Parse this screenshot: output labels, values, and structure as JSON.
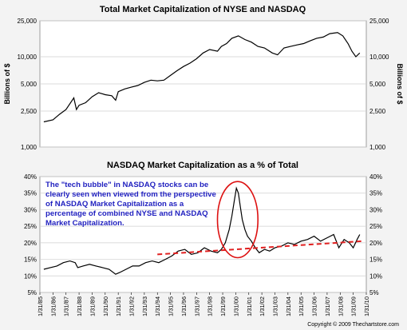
{
  "chart_data": [
    {
      "type": "line",
      "title": "Total Market Capitalization of NYSE and NASDAQ",
      "ylabel_left": "Billions of $",
      "ylabel_right": "Billions of $",
      "yscale": "log",
      "ylim": [
        1000,
        25000
      ],
      "yticks": [
        1000,
        2500,
        5000,
        10000,
        25000
      ],
      "ytick_labels": [
        "1,000",
        "2,500",
        "5,000",
        "10,000",
        "25,000"
      ],
      "xlim": [
        1985.0,
        2010.0
      ],
      "grid": true,
      "series": [
        {
          "line_color": "#000000",
          "x": [
            1985.3,
            1986.0,
            1986.5,
            1987.0,
            1987.6,
            1987.8,
            1988.0,
            1988.5,
            1989.0,
            1989.5,
            1990.0,
            1990.5,
            1990.8,
            1991.0,
            1991.5,
            1992.0,
            1992.5,
            1993.0,
            1993.5,
            1994.0,
            1994.5,
            1995.0,
            1995.5,
            1996.0,
            1996.5,
            1997.0,
            1997.5,
            1998.0,
            1998.6,
            1998.9,
            1999.3,
            1999.7,
            2000.2,
            2000.7,
            2001.2,
            2001.7,
            2002.2,
            2002.8,
            2003.2,
            2003.7,
            2004.2,
            2004.7,
            2005.2,
            2005.7,
            2006.2,
            2006.7,
            2007.2,
            2007.8,
            2008.2,
            2008.6,
            2008.9,
            2009.2,
            2009.5
          ],
          "y": [
            1900,
            2000,
            2300,
            2600,
            3500,
            2600,
            2900,
            3100,
            3600,
            4000,
            3800,
            3700,
            3300,
            4100,
            4400,
            4600,
            4800,
            5200,
            5500,
            5400,
            5500,
            6200,
            7000,
            7800,
            8500,
            9500,
            11000,
            12000,
            11500,
            13000,
            14000,
            16000,
            17000,
            15500,
            14500,
            13000,
            12500,
            11000,
            10500,
            12500,
            13000,
            13500,
            14000,
            15000,
            16000,
            16500,
            18000,
            18500,
            17000,
            14000,
            11500,
            10000,
            11000
          ]
        }
      ]
    },
    {
      "type": "line",
      "title": "NASDAQ Market Capitalization as a % of Total",
      "ylim": [
        5,
        40
      ],
      "yticks": [
        5,
        10,
        15,
        20,
        25,
        30,
        35,
        40
      ],
      "ytick_labels": [
        "5%",
        "10%",
        "15%",
        "20%",
        "25%",
        "30%",
        "35%",
        "40%"
      ],
      "xlim": [
        1985.0,
        2010.0
      ],
      "x_tick_labels": [
        "1/31/85",
        "1/31/86",
        "1/31/87",
        "1/31/88",
        "1/31/89",
        "1/31/90",
        "1/31/91",
        "1/31/92",
        "1/31/93",
        "1/31/94",
        "1/31/95",
        "1/31/96",
        "1/31/97",
        "1/31/98",
        "1/31/99",
        "1/31/00",
        "1/31/01",
        "1/31/02",
        "1/31/03",
        "1/31/04",
        "1/31/05",
        "1/31/06",
        "1/31/07",
        "1/31/08",
        "1/31/09",
        "1/31/10"
      ],
      "grid": true,
      "series": [
        {
          "line_color": "#000000",
          "x": [
            1985.3,
            1985.8,
            1986.3,
            1986.8,
            1987.3,
            1987.7,
            1987.9,
            1988.3,
            1988.8,
            1989.3,
            1989.8,
            1990.3,
            1990.8,
            1991.1,
            1991.6,
            1992.1,
            1992.6,
            1993.1,
            1993.6,
            1994.1,
            1994.6,
            1995.1,
            1995.6,
            1996.1,
            1996.6,
            1997.1,
            1997.6,
            1998.1,
            1998.6,
            1998.9,
            1999.2,
            1999.5,
            1999.7,
            1999.9,
            2000.05,
            2000.2,
            2000.35,
            2000.5,
            2000.7,
            2000.9,
            2001.2,
            2001.5,
            2001.8,
            2002.2,
            2002.6,
            2003.0,
            2003.5,
            2004.0,
            2004.5,
            2005.0,
            2005.5,
            2006.0,
            2006.5,
            2007.0,
            2007.5,
            2007.9,
            2008.3,
            2008.7,
            2009.0,
            2009.3,
            2009.5
          ],
          "y": [
            12,
            12.5,
            13,
            14,
            14.5,
            14,
            12.5,
            13,
            13.5,
            13,
            12.5,
            12,
            10.5,
            11,
            12,
            13,
            13,
            14,
            14.5,
            14,
            15,
            16,
            17.5,
            18,
            16.5,
            17,
            18.5,
            17.5,
            17,
            18,
            20,
            24,
            28,
            33,
            36.5,
            35,
            31,
            27,
            24,
            22,
            20.5,
            18.5,
            17,
            18,
            17.5,
            18.5,
            19,
            20,
            19.5,
            20.5,
            21,
            22,
            20.5,
            21.5,
            22.5,
            18.5,
            21,
            20,
            18.5,
            21,
            22.5
          ]
        },
        {
          "name": "trend",
          "line_color": "#e02020",
          "dashed": true,
          "x": [
            1994.0,
            2009.7
          ],
          "y": [
            16.5,
            20.5
          ]
        }
      ],
      "annotations": [
        "The \"tech bubble\" in NASDAQ stocks can be",
        "clearly seen when viewed from the perspective",
        "of NASDAQ Market Capitalization as a",
        "percentage of combined NYSE and NASDAQ",
        "Market Capitalization."
      ],
      "highlight": {
        "shape": "ellipse",
        "color": "#d11",
        "x_range": [
          1998.6,
          2001.7
        ],
        "y_range": [
          15.5,
          38.5
        ]
      }
    }
  ],
  "copyright": "Copyright © 2009 Thechartstore.com"
}
